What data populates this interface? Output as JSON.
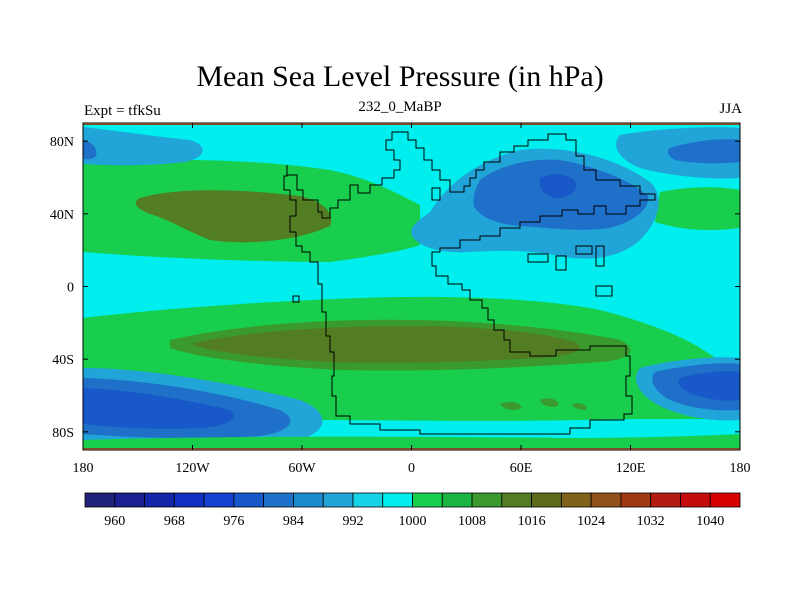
{
  "title": "Mean Sea Level Pressure (in hPa)",
  "experiment_label": "Expt = tfkSu",
  "time_label": "232_0_MaBP",
  "season_label": "JJA",
  "lat_ticks": [
    "80N",
    "40N",
    "0",
    "40S",
    "80S"
  ],
  "lat_values": [
    80,
    40,
    0,
    -40,
    -80
  ],
  "lon_ticks": [
    "180",
    "120W",
    "60W",
    "0",
    "60E",
    "120E",
    "180"
  ],
  "lon_values": [
    -180,
    -120,
    -60,
    0,
    60,
    120,
    180
  ],
  "colorbar": {
    "min": 956,
    "step": 4,
    "colors": [
      "#21237a",
      "#1c1f91",
      "#1426a8",
      "#1030c1",
      "#1742d1",
      "#1858c8",
      "#1e70c8",
      "#1f8bcf",
      "#21a4d8",
      "#15d2e6",
      "#00eeee",
      "#18ce4c",
      "#1cb544",
      "#3a9a2e",
      "#527d22",
      "#5e6b18",
      "#80621a",
      "#93521c",
      "#a13814",
      "#b21b12",
      "#c40c0c",
      "#d90000"
    ],
    "labels": [
      "960",
      "968",
      "976",
      "984",
      "992",
      "1000",
      "1008",
      "1016",
      "1024",
      "1032",
      "1040"
    ]
  },
  "colors": {
    "ocean_background": "#00eeee",
    "band_1000": "#00eeee",
    "band_1008": "#18ce4c",
    "band_1012": "#3a9a2e",
    "band_1016": "#527d22",
    "band_992": "#21a4d8",
    "band_988": "#1e70c8",
    "band_984": "#1858c8",
    "pole_edge": "#7a4b28",
    "coast": "#000000"
  }
}
